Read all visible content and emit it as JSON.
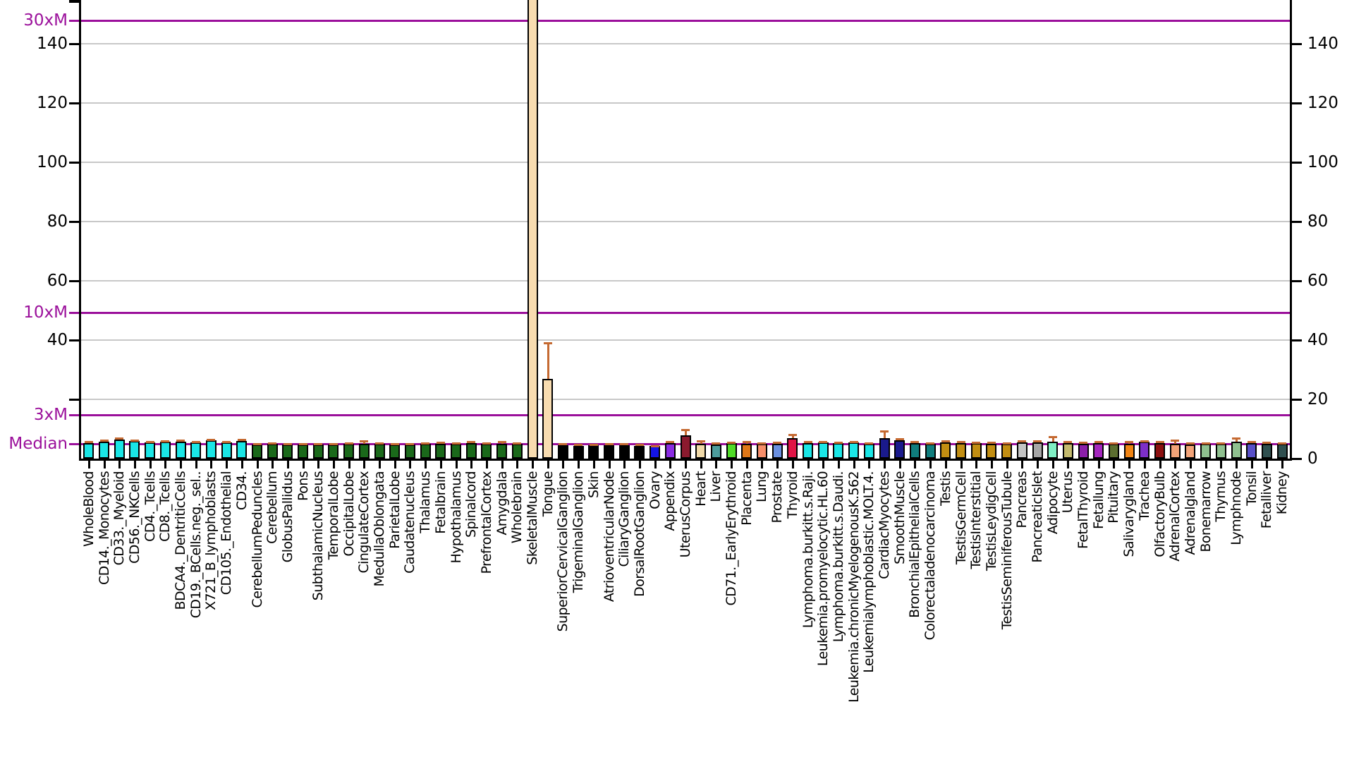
{
  "chart_data": {
    "type": "bar",
    "title": "",
    "xlabel": "",
    "ylabel": "",
    "legend": "none",
    "grid": true,
    "ylim": [
      0,
      154.8
    ],
    "y_axis": {
      "grid_step": 20,
      "grid_values": [
        20,
        40,
        60,
        80,
        100,
        120,
        140
      ],
      "left_tick_labels": [
        140,
        120,
        100,
        80,
        60,
        40
      ],
      "left_unlabeled_ticks": [
        20
      ],
      "right_tick_labels": [
        140,
        120,
        100,
        80,
        60,
        40,
        20,
        0
      ]
    },
    "ref_lines": [
      {
        "label": "30xM",
        "value": 147.9
      },
      {
        "label": "10xM",
        "value": 49.3
      },
      {
        "label": "3xM",
        "value": 14.8
      },
      {
        "label": "Median",
        "value": 4.93
      }
    ],
    "ref_color": "#9B109B",
    "grid_color": "#C8C8C8",
    "error_bar_color": "#C56A32",
    "bars": [
      {
        "label": "WholeBlood",
        "value": 5.2,
        "err": 0.5,
        "color": "#1AE6E6"
      },
      {
        "label": "CD14._Monocytes",
        "value": 5.8,
        "err": 0.5,
        "color": "#1AE6E6"
      },
      {
        "label": "CD33._Myeloid",
        "value": 6.4,
        "err": 0.6,
        "color": "#1AE6E6"
      },
      {
        "label": "CD56._NKCells",
        "value": 6.0,
        "err": 0.3,
        "color": "#1AE6E6"
      },
      {
        "label": "CD4._Tcells",
        "value": 5.5,
        "err": 0.3,
        "color": "#1AE6E6"
      },
      {
        "label": "CD8._Tcells",
        "value": 5.6,
        "err": 0.4,
        "color": "#1AE6E6"
      },
      {
        "label": "BDCA4._DentriticCells",
        "value": 5.8,
        "err": 0.5,
        "color": "#1AE6E6"
      },
      {
        "label": "CD19._BCells.neg._sel..",
        "value": 5.4,
        "err": 0.3,
        "color": "#1AE6E6"
      },
      {
        "label": "X721_B_lymphoblasts",
        "value": 6.1,
        "err": 0.3,
        "color": "#1AE6E6"
      },
      {
        "label": "CD105._Endothelial",
        "value": 5.5,
        "err": 0.3,
        "color": "#1AE6E6"
      },
      {
        "label": "CD34.",
        "value": 6.0,
        "err": 0.4,
        "color": "#1AE6E6"
      },
      {
        "label": "CerebellumPeduncles",
        "value": 4.8,
        "err": 0.3,
        "color": "#1A691A"
      },
      {
        "label": "Cerebellum",
        "value": 4.9,
        "err": 0.3,
        "color": "#1A691A"
      },
      {
        "label": "GlobusPallidus",
        "value": 4.7,
        "err": 0.2,
        "color": "#1A691A"
      },
      {
        "label": "Pons",
        "value": 4.8,
        "err": 0.3,
        "color": "#1A691A"
      },
      {
        "label": "SubthalamicNucleus",
        "value": 4.7,
        "err": 0.2,
        "color": "#1A691A"
      },
      {
        "label": "TemporalLobe",
        "value": 4.8,
        "err": 0.3,
        "color": "#1A691A"
      },
      {
        "label": "OccipitalLobe",
        "value": 4.9,
        "err": 0.3,
        "color": "#1A691A"
      },
      {
        "label": "CingulateCortex",
        "value": 5.1,
        "err": 0.8,
        "color": "#1A691A"
      },
      {
        "label": "MedullaOblongata",
        "value": 4.9,
        "err": 0.4,
        "color": "#1A691A"
      },
      {
        "label": "ParietalLobe",
        "value": 4.8,
        "err": 0.3,
        "color": "#1A691A"
      },
      {
        "label": "Caudatenucleus",
        "value": 4.8,
        "err": 0.3,
        "color": "#1A691A"
      },
      {
        "label": "Thalamus",
        "value": 5.0,
        "err": 0.3,
        "color": "#1A691A"
      },
      {
        "label": "Fetalbrain",
        "value": 5.1,
        "err": 0.3,
        "color": "#1A691A"
      },
      {
        "label": "Hypothalamus",
        "value": 5.0,
        "err": 0.3,
        "color": "#1A691A"
      },
      {
        "label": "Spinalcord",
        "value": 5.2,
        "err": 0.4,
        "color": "#1A691A"
      },
      {
        "label": "PrefrontalCortex",
        "value": 4.9,
        "err": 0.3,
        "color": "#1A691A"
      },
      {
        "label": "Amygdala",
        "value": 4.9,
        "err": 0.9,
        "color": "#1A691A"
      },
      {
        "label": "Wholebrain",
        "value": 4.9,
        "err": 0.3,
        "color": "#1A691A"
      },
      {
        "label": "SkeletalMuscle",
        "value": 160,
        "err": 0,
        "color": "#F8DCB0"
      },
      {
        "label": "Tongue",
        "value": 27,
        "err": 12,
        "color": "#F8DCB0"
      },
      {
        "label": "SuperiorCervicalGanglion",
        "value": 4.6,
        "err": 0.4,
        "color": "#000000"
      },
      {
        "label": "TrigeminalGanglion",
        "value": 4.4,
        "err": 0.3,
        "color": "#000000"
      },
      {
        "label": "Skin",
        "value": 4.5,
        "err": 0.3,
        "color": "#000000"
      },
      {
        "label": "AtrioventricularNode",
        "value": 4.5,
        "err": 0.4,
        "color": "#000000"
      },
      {
        "label": "CiliaryGanglion",
        "value": 4.6,
        "err": 0.4,
        "color": "#000000"
      },
      {
        "label": "DorsalRootGanglion",
        "value": 4.4,
        "err": 0.3,
        "color": "#000000"
      },
      {
        "label": "Ovary",
        "value": 4.2,
        "err": 0.2,
        "color": "#1414E6"
      },
      {
        "label": "Appendix",
        "value": 5.3,
        "err": 0.3,
        "color": "#8A2BE2"
      },
      {
        "label": "UterusCorpus",
        "value": 7.8,
        "err": 2.0,
        "color": "#8B1A2E"
      },
      {
        "label": "Heart",
        "value": 5.0,
        "err": 1.0,
        "color": "#F0D9A8"
      },
      {
        "label": "Liver",
        "value": 4.8,
        "err": 0.4,
        "color": "#4D9C9C"
      },
      {
        "label": "CD71._EarlyErythroid",
        "value": 5.2,
        "err": 0.3,
        "color": "#50DC28"
      },
      {
        "label": "Placenta",
        "value": 5.1,
        "err": 0.6,
        "color": "#E07818"
      },
      {
        "label": "Lung",
        "value": 4.9,
        "err": 0.4,
        "color": "#F78E6A"
      },
      {
        "label": "Prostate",
        "value": 5.0,
        "err": 0.4,
        "color": "#6A8FE0"
      },
      {
        "label": "Thyroid",
        "value": 7.0,
        "err": 1.0,
        "color": "#E01446"
      },
      {
        "label": "Lymphoma.burkitt.s.Raji.",
        "value": 5.3,
        "err": 0.4,
        "color": "#1AE6E6"
      },
      {
        "label": "Leukemia.promyelocytic.HL.60",
        "value": 5.5,
        "err": 0.3,
        "color": "#1AE6E6"
      },
      {
        "label": "Lymphoma.burkitt.s.Daudi.",
        "value": 5.2,
        "err": 0.3,
        "color": "#1AE6E6"
      },
      {
        "label": "Leukemia.chronicMyelogenousK.562",
        "value": 5.4,
        "err": 0.3,
        "color": "#1AE6E6"
      },
      {
        "label": "Leukemialymphoblastic.MOLT.4.",
        "value": 5.0,
        "err": 0.3,
        "color": "#1AE6E6"
      },
      {
        "label": "CardiacMyocytes",
        "value": 7.0,
        "err": 2.4,
        "color": "#1A1A8C"
      },
      {
        "label": "SmoothMuscle",
        "value": 6.3,
        "err": 0.4,
        "color": "#1A1A8C"
      },
      {
        "label": "BronchialEpithelialCells",
        "value": 5.2,
        "err": 0.4,
        "color": "#0F7D7D"
      },
      {
        "label": "Colorectaladenocarcinoma",
        "value": 5.0,
        "err": 0.3,
        "color": "#0F7D7D"
      },
      {
        "label": "Testis",
        "value": 5.5,
        "err": 0.4,
        "color": "#C28E12"
      },
      {
        "label": "TestisGermCell",
        "value": 5.3,
        "err": 0.3,
        "color": "#C28E12"
      },
      {
        "label": "TestisInterstitial",
        "value": 5.2,
        "err": 0.3,
        "color": "#C28E12"
      },
      {
        "label": "TestisLeydigCell",
        "value": 5.1,
        "err": 0.3,
        "color": "#C28E12"
      },
      {
        "label": "TestisSeminiferousTubule",
        "value": 5.0,
        "err": 0.3,
        "color": "#C28E12"
      },
      {
        "label": "Pancreas",
        "value": 5.4,
        "err": 0.5,
        "color": "#C4C4C4"
      },
      {
        "label": "PancreaticIslet",
        "value": 5.5,
        "err": 0.4,
        "color": "#A6A6A6"
      },
      {
        "label": "Adipocyte",
        "value": 5.8,
        "err": 1.5,
        "color": "#7FEFC4"
      },
      {
        "label": "Uterus",
        "value": 5.2,
        "err": 0.4,
        "color": "#C4BA6E"
      },
      {
        "label": "FetalThyroid",
        "value": 5.1,
        "err": 0.4,
        "color": "#8B1FA8"
      },
      {
        "label": "Fetallung",
        "value": 5.3,
        "err": 0.3,
        "color": "#A426BE"
      },
      {
        "label": "Pituitary",
        "value": 5.0,
        "err": 0.3,
        "color": "#5C6E30"
      },
      {
        "label": "Salivarygland",
        "value": 5.1,
        "err": 0.6,
        "color": "#F08414"
      },
      {
        "label": "Trachea",
        "value": 5.6,
        "err": 0.4,
        "color": "#7D2FC8"
      },
      {
        "label": "OlfactoryBulb",
        "value": 5.3,
        "err": 0.5,
        "color": "#8B0F0F"
      },
      {
        "label": "AdrenalCortex",
        "value": 5.0,
        "err": 1.1,
        "color": "#F2A378"
      },
      {
        "label": "Adrenalgland",
        "value": 4.8,
        "err": 0.4,
        "color": "#F2A378"
      },
      {
        "label": "Bonemarrow",
        "value": 4.9,
        "err": 0.3,
        "color": "#8FC08F"
      },
      {
        "label": "Thymus",
        "value": 4.9,
        "err": 0.3,
        "color": "#8FC08F"
      },
      {
        "label": "Lymphnode",
        "value": 5.6,
        "err": 1.3,
        "color": "#8FC08F"
      },
      {
        "label": "Tonsil",
        "value": 5.2,
        "err": 0.4,
        "color": "#584FC8"
      },
      {
        "label": "Fetalliver",
        "value": 5.0,
        "err": 0.4,
        "color": "#2F4F4F"
      },
      {
        "label": "Kidney",
        "value": 4.9,
        "err": 0.3,
        "color": "#2F4F4F"
      }
    ]
  }
}
